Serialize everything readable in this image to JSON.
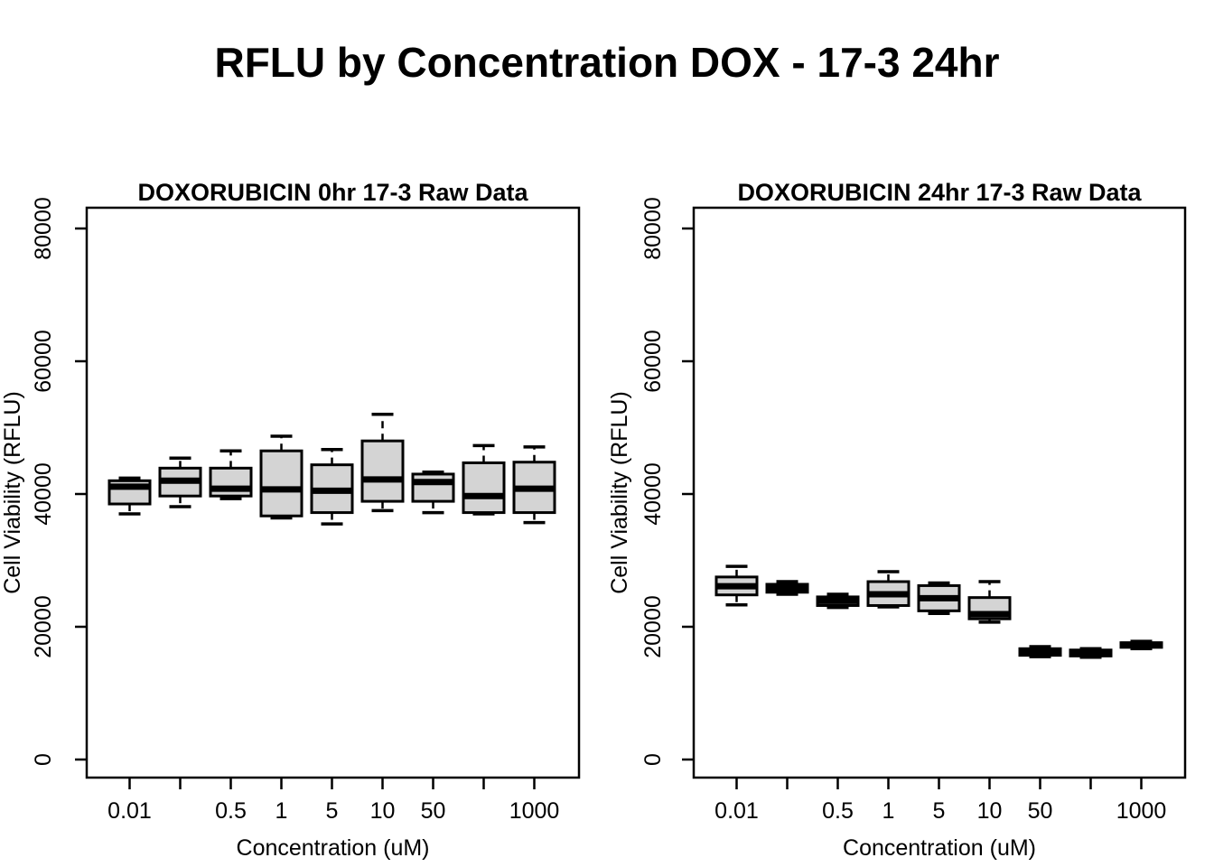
{
  "main_title": "RFLU by Concentration DOX - 17-3 24hr",
  "styles": {
    "background": "#ffffff",
    "box_fill": "#d4d4d4",
    "line_color": "#000000",
    "text_color": "#000000"
  },
  "chart_data": [
    {
      "type": "boxplot",
      "title": "DOXORUBICIN 0hr 17-3 Raw Data",
      "xlabel": "Concentration (uM)",
      "ylabel": "Cell Viability (RFLU)",
      "y_ticks": [
        0,
        20000,
        40000,
        60000,
        80000
      ],
      "ylim": [
        -2700,
        83100
      ],
      "grid": "off",
      "x_tick_labels": [
        "0.01",
        "",
        "0.5",
        "1",
        "5",
        "10",
        "50",
        "",
        "1000"
      ],
      "boxes": [
        {
          "low": 37000,
          "q1": 38500,
          "median": 41100,
          "q3": 42000,
          "high": 42400
        },
        {
          "low": 38100,
          "q1": 39700,
          "median": 42000,
          "q3": 43900,
          "high": 45400
        },
        {
          "low": 39300,
          "q1": 39700,
          "median": 40800,
          "q3": 43900,
          "high": 46500
        },
        {
          "low": 36400,
          "q1": 36700,
          "median": 40700,
          "q3": 46500,
          "high": 48700
        },
        {
          "low": 35500,
          "q1": 37200,
          "median": 40500,
          "q3": 44400,
          "high": 46700
        },
        {
          "low": 37500,
          "q1": 38900,
          "median": 42200,
          "q3": 48000,
          "high": 52000
        },
        {
          "low": 37200,
          "q1": 38900,
          "median": 41800,
          "q3": 43000,
          "high": 43300
        },
        {
          "low": 37000,
          "q1": 37200,
          "median": 39700,
          "q3": 44700,
          "high": 47300
        },
        {
          "low": 35700,
          "q1": 37200,
          "median": 40800,
          "q3": 44800,
          "high": 47100
        }
      ]
    },
    {
      "type": "boxplot",
      "title": "DOXORUBICIN 24hr 17-3 Raw Data",
      "xlabel": "Concentration (uM)",
      "ylabel": "Cell Viability (RFLU)",
      "y_ticks": [
        0,
        20000,
        40000,
        60000,
        80000
      ],
      "ylim": [
        -2700,
        83100
      ],
      "grid": "off",
      "x_tick_labels": [
        "0.01",
        "",
        "0.5",
        "1",
        "5",
        "10",
        "50",
        "",
        "1000"
      ],
      "boxes": [
        {
          "low": 23300,
          "q1": 24800,
          "median": 26100,
          "q3": 27500,
          "high": 29100
        },
        {
          "low": 24900,
          "q1": 25200,
          "median": 25800,
          "q3": 26400,
          "high": 26800
        },
        {
          "low": 22900,
          "q1": 23200,
          "median": 23900,
          "q3": 24500,
          "high": 24900
        },
        {
          "low": 23000,
          "q1": 23200,
          "median": 24900,
          "q3": 26800,
          "high": 28300
        },
        {
          "low": 22000,
          "q1": 22400,
          "median": 24300,
          "q3": 26200,
          "high": 26600
        },
        {
          "low": 20700,
          "q1": 21200,
          "median": 21900,
          "q3": 24400,
          "high": 26800
        },
        {
          "low": 15500,
          "q1": 15700,
          "median": 16200,
          "q3": 16700,
          "high": 17000
        },
        {
          "low": 15400,
          "q1": 15600,
          "median": 16000,
          "q3": 16500,
          "high": 16700
        },
        {
          "low": 16700,
          "q1": 16900,
          "median": 17300,
          "q3": 17600,
          "high": 17800
        }
      ]
    }
  ]
}
